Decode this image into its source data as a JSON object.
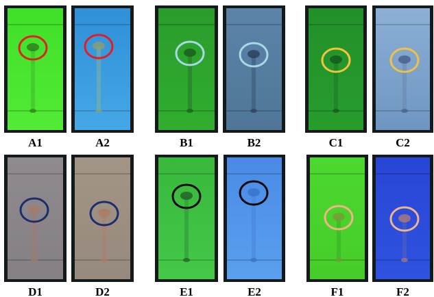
{
  "panels": [
    {
      "label": "A1"
    },
    {
      "label": "A2"
    },
    {
      "label": "B1"
    },
    {
      "label": "B2"
    },
    {
      "label": "C1"
    },
    {
      "label": "C2"
    },
    {
      "label": "D1"
    },
    {
      "label": "D2"
    },
    {
      "label": "E1"
    },
    {
      "label": "E2"
    },
    {
      "label": "F1"
    },
    {
      "label": "F2"
    }
  ]
}
